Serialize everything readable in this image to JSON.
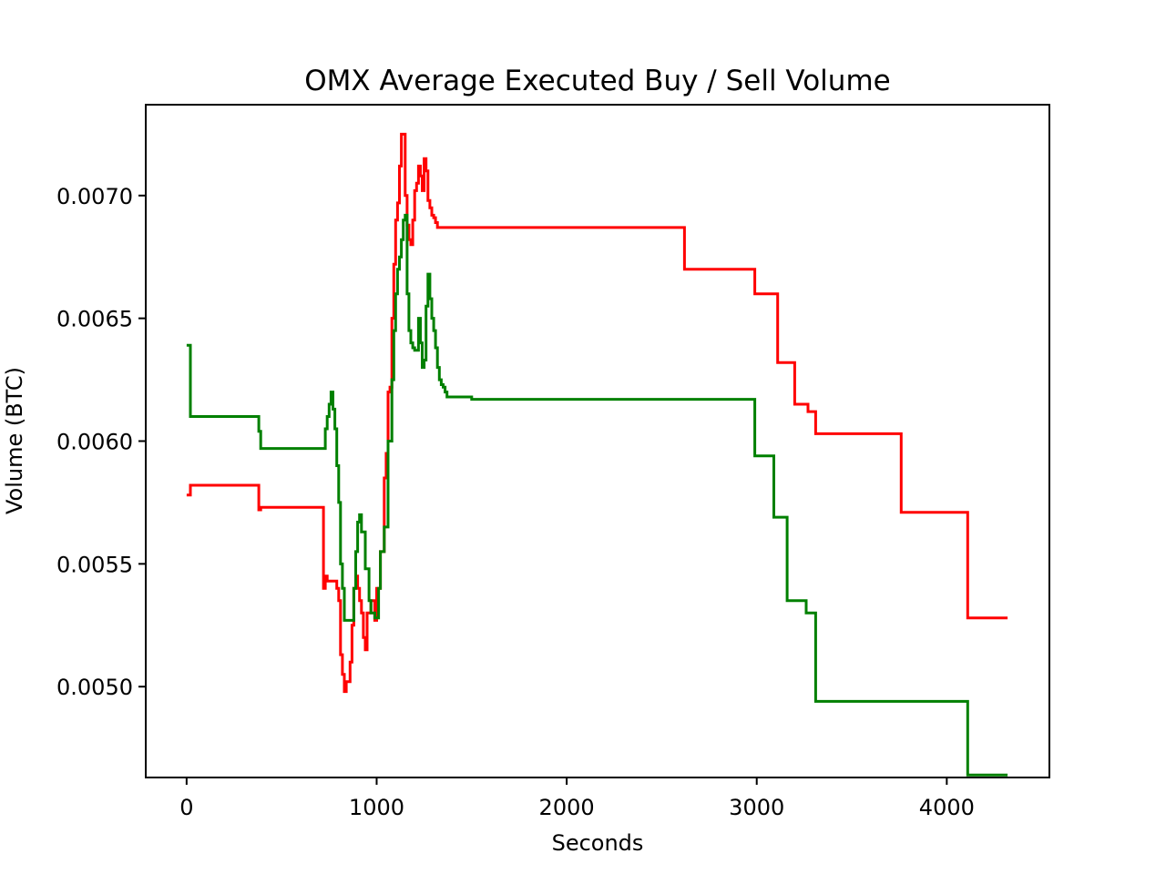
{
  "chart_data": {
    "type": "line",
    "title": "OMX Average Executed Buy / Sell Volume",
    "xlabel": "Seconds",
    "ylabel": "Volume (BTC)",
    "xlim": [
      -215,
      4540
    ],
    "ylim": [
      0.00463,
      0.00737
    ],
    "xticks": [
      0,
      1000,
      2000,
      3000,
      4000
    ],
    "xtick_labels": [
      "0",
      "1000",
      "2000",
      "3000",
      "4000"
    ],
    "yticks": [
      0.005,
      0.0055,
      0.006,
      0.0065,
      0.007
    ],
    "ytick_labels": [
      "0.0050",
      "0.0055",
      "0.0060",
      "0.0065",
      "0.0070"
    ],
    "grid": false,
    "legend": "none",
    "step": true,
    "series": [
      {
        "color": "#ff0000",
        "x": [
          0,
          20,
          380,
          390,
          720,
          730,
          740,
          790,
          800,
          810,
          820,
          830,
          840,
          860,
          870,
          880,
          890,
          900,
          910,
          920,
          930,
          940,
          950,
          970,
          990,
          1000,
          1020,
          1040,
          1050,
          1060,
          1070,
          1080,
          1090,
          1100,
          1110,
          1120,
          1130,
          1150,
          1160,
          1170,
          1180,
          1190,
          1200,
          1210,
          1220,
          1230,
          1240,
          1250,
          1260,
          1270,
          1280,
          1290,
          1300,
          1310,
          1320,
          1330,
          1340,
          1350,
          1360,
          1370,
          1380,
          1390,
          1400,
          1420,
          1440,
          1470,
          1500,
          2620,
          2990,
          3110,
          3200,
          3270,
          3310,
          3760,
          4110,
          4320
        ],
        "y": [
          0.00578,
          0.00582,
          0.00572,
          0.00573,
          0.0054,
          0.00545,
          0.00543,
          0.0054,
          0.00535,
          0.00513,
          0.00505,
          0.00498,
          0.00502,
          0.0051,
          0.00525,
          0.0054,
          0.00545,
          0.0054,
          0.00535,
          0.0053,
          0.0052,
          0.00515,
          0.0053,
          0.00535,
          0.00527,
          0.0054,
          0.00555,
          0.00585,
          0.00595,
          0.0062,
          0.00622,
          0.0065,
          0.00672,
          0.0069,
          0.00697,
          0.00712,
          0.00725,
          0.007,
          0.00688,
          0.00682,
          0.0068,
          0.0069,
          0.00702,
          0.00705,
          0.00712,
          0.00708,
          0.00702,
          0.00715,
          0.0071,
          0.00698,
          0.00695,
          0.00692,
          0.00691,
          0.00689,
          0.00687,
          0.00687,
          0.00687,
          0.00687,
          0.00687,
          0.00687,
          0.00687,
          0.00687,
          0.00687,
          0.00687,
          0.00687,
          0.00687,
          0.00687,
          0.0067,
          0.0066,
          0.00632,
          0.00615,
          0.00612,
          0.00603,
          0.00571,
          0.00528,
          0.00528
        ]
      },
      {
        "color": "#008000",
        "x": [
          0,
          20,
          380,
          390,
          730,
          740,
          750,
          760,
          770,
          780,
          790,
          800,
          810,
          820,
          830,
          840,
          850,
          880,
          890,
          900,
          910,
          920,
          940,
          960,
          970,
          990,
          1010,
          1020,
          1040,
          1060,
          1080,
          1090,
          1100,
          1110,
          1120,
          1130,
          1140,
          1150,
          1160,
          1170,
          1180,
          1190,
          1200,
          1220,
          1230,
          1240,
          1250,
          1260,
          1270,
          1280,
          1290,
          1300,
          1310,
          1320,
          1330,
          1340,
          1350,
          1360,
          1370,
          1380,
          1400,
          1420,
          1440,
          1470,
          1500,
          2990,
          3090,
          3160,
          3260,
          3310,
          4110,
          4320
        ],
        "y": [
          0.00639,
          0.0061,
          0.00604,
          0.00597,
          0.00605,
          0.0061,
          0.00615,
          0.0062,
          0.00613,
          0.00605,
          0.0059,
          0.00575,
          0.0055,
          0.0054,
          0.00527,
          0.00527,
          0.00527,
          0.0054,
          0.00555,
          0.00567,
          0.0057,
          0.00563,
          0.00548,
          0.00535,
          0.0053,
          0.00528,
          0.0054,
          0.00555,
          0.00565,
          0.006,
          0.00625,
          0.00645,
          0.0066,
          0.0067,
          0.00675,
          0.00682,
          0.0069,
          0.00692,
          0.0066,
          0.00645,
          0.0064,
          0.00638,
          0.00637,
          0.0065,
          0.0064,
          0.0063,
          0.00633,
          0.00655,
          0.00668,
          0.00658,
          0.0065,
          0.00645,
          0.00638,
          0.0063,
          0.00625,
          0.00623,
          0.00622,
          0.0062,
          0.00618,
          0.00618,
          0.00618,
          0.00618,
          0.00618,
          0.00618,
          0.00617,
          0.00594,
          0.00569,
          0.00535,
          0.0053,
          0.00494,
          0.00464,
          0.00464
        ]
      }
    ]
  }
}
